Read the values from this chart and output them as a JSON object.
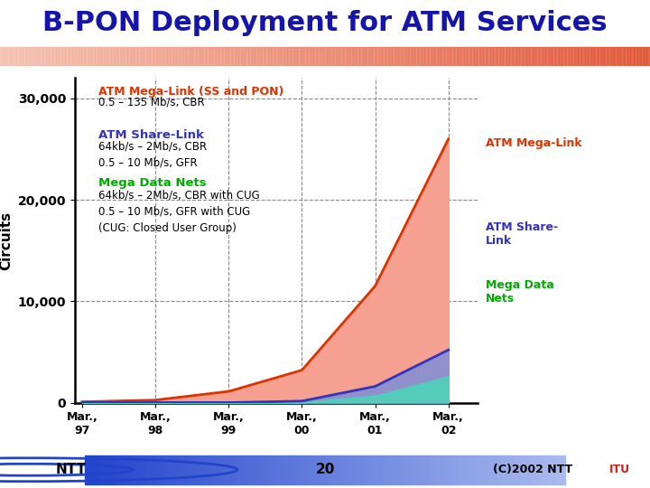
{
  "title": "B-PON Deployment for ATM Services",
  "title_color": "#1515aa",
  "title_fontsize": 22,
  "background_color": "#ffffff",
  "header_bar_gradient_left": "#f5c0b0",
  "header_bar_gradient_right": "#e05030",
  "ylabel": "Circuits",
  "ylim": [
    0,
    32000
  ],
  "yticks": [
    0,
    10000,
    20000,
    30000
  ],
  "ytick_labels": [
    "0",
    "10,000",
    "20,000",
    "30,000"
  ],
  "xtick_labels": [
    "Mar.,\n97",
    "Mar.,\n98",
    "Mar.,\n99",
    "Mar.,\n00",
    "Mar.,\n01",
    "Mar.,\n02"
  ],
  "x_values": [
    0,
    1,
    2,
    3,
    4,
    5
  ],
  "mega_link_values": [
    80,
    250,
    1100,
    3200,
    11500,
    26000
  ],
  "share_link_values": [
    0,
    0,
    0,
    150,
    1600,
    5200
  ],
  "mega_data_values": [
    0,
    0,
    0,
    40,
    700,
    2600
  ],
  "mega_link_color": "#dd3300",
  "mega_link_fill": "#f5a090",
  "share_link_color": "#3333bb",
  "share_link_fill": "#9090cc",
  "mega_data_fill": "#55ccbb",
  "ann_ml_title": "ATM Mega-Link (SS and PON)",
  "ann_ml_sub": "0.5 – 135 Mb/s, CBR",
  "ann_sl_title": "ATM Share-Link",
  "ann_sl_sub": "64kb/s – 2Mb/s, CBR\n0.5 – 10 Mb/s, GFR",
  "ann_md_title": "Mega Data Nets",
  "ann_md_sub": "64kb/s – 2Mb/s, CBR with CUG\n0.5 – 10 Mb/s, GFR with CUG\n(CUG: Closed User Group)",
  "label_megalink": "ATM Mega-Link",
  "label_sharelink": "ATM Share-\nLink",
  "label_megadata": "Mega Data\nNets",
  "footer_text": "20",
  "footer_right": "(C)2002 NTT",
  "footer_bar_left": "#2244cc",
  "footer_bar_right": "#aabbee"
}
